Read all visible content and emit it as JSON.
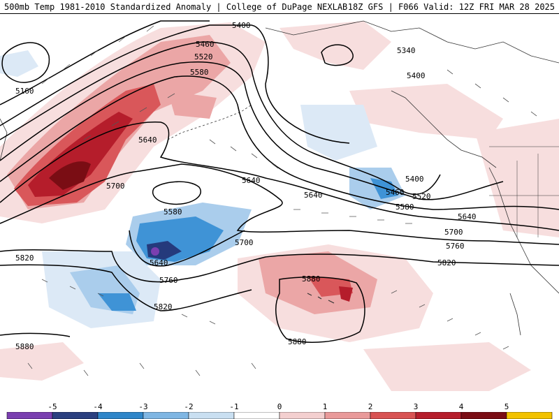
{
  "header": {
    "left_title": "500mb Temp 1981-2010 Standardized Anomaly | College of DuPage NEXLAB",
    "right_title": "18Z GFS | F066 Valid: 12Z FRI MAR 28 2025"
  },
  "contour_labels": [
    {
      "text": "5400",
      "name": "contour-label-5400-a"
    },
    {
      "text": "5460",
      "name": "contour-label-5460-a"
    },
    {
      "text": "5520",
      "name": "contour-label-5520-a"
    },
    {
      "text": "5580",
      "name": "contour-label-5580-a"
    },
    {
      "text": "5160",
      "name": "contour-label-5160"
    },
    {
      "text": "5340",
      "name": "contour-label-5340"
    },
    {
      "text": "5400",
      "name": "contour-label-5400-b"
    },
    {
      "text": "5640",
      "name": "contour-label-5640-a"
    },
    {
      "text": "5700",
      "name": "contour-label-5700-a"
    },
    {
      "text": "5640",
      "name": "contour-label-5640-b"
    },
    {
      "text": "5580",
      "name": "contour-label-5580-b"
    },
    {
      "text": "5400",
      "name": "contour-label-5400-c"
    },
    {
      "text": "5460",
      "name": "contour-label-5460-b"
    },
    {
      "text": "5520",
      "name": "contour-label-5520-b"
    },
    {
      "text": "5580",
      "name": "contour-label-5580-c"
    },
    {
      "text": "5640",
      "name": "contour-label-5640-c"
    },
    {
      "text": "5640",
      "name": "contour-label-5640-d"
    },
    {
      "text": "5700",
      "name": "contour-label-5700-b"
    },
    {
      "text": "5700",
      "name": "contour-label-5700-c"
    },
    {
      "text": "5760",
      "name": "contour-label-5760-a"
    },
    {
      "text": "5640",
      "name": "contour-label-5640-e"
    },
    {
      "text": "5760",
      "name": "contour-label-5760-b"
    },
    {
      "text": "5820",
      "name": "contour-label-5820-a"
    },
    {
      "text": "5820",
      "name": "contour-label-5820-b"
    },
    {
      "text": "5820",
      "name": "contour-label-5820-c"
    },
    {
      "text": "5880",
      "name": "contour-label-5880-a"
    },
    {
      "text": "5880",
      "name": "contour-label-5880-b"
    },
    {
      "text": "5880",
      "name": "contour-label-5880-c"
    }
  ],
  "colorbar": {
    "labels": [
      "-5",
      "-4",
      "-3",
      "-2",
      "-1",
      "0",
      "1",
      "2",
      "3",
      "4",
      "5"
    ],
    "colors": [
      "#7a3fb0",
      "#2a3f7f",
      "#2f86c9",
      "#7fb6e3",
      "#c9dff1",
      "#ffffff",
      "#f3cfcf",
      "#e99a9a",
      "#d85353",
      "#b51d2b",
      "#7a0d14",
      "#f2c200"
    ]
  },
  "colors": {
    "neg1": "#dce9f6",
    "neg2": "#aacdec",
    "neg3": "#3f93d6",
    "neg4": "#253a7c",
    "neg5": "#7a3fb0",
    "pos1": "#f7dede",
    "pos2": "#eba6a6",
    "pos3": "#d9575a",
    "pos4": "#b51d2b",
    "pos5": "#7a0d14"
  }
}
